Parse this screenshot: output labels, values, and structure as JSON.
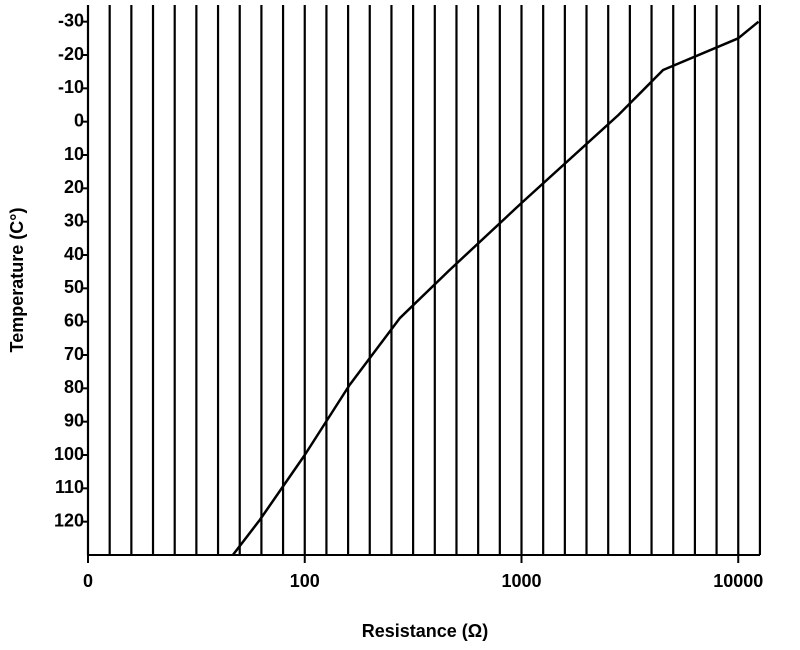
{
  "chart_data": {
    "type": "line",
    "xlabel": "Resistance (Ω)",
    "ylabel": "Temperature (C°)",
    "x": [
      46.6,
      62,
      100,
      161,
      274,
      466,
      1000,
      2800,
      4500,
      10000,
      12400
    ],
    "series": [
      {
        "name": "Temperature",
        "color": "#000000",
        "values": [
          130,
          119.5,
          100,
          79,
          59,
          44.5,
          24.4,
          -2,
          -15.5,
          -25,
          -30
        ]
      }
    ],
    "xscale": "log",
    "xlim": [
      10,
      12600
    ],
    "xticks": [
      {
        "value": 10,
        "label": "0"
      },
      100,
      1000,
      10000
    ],
    "xgrid": [
      10,
      12.59,
      15.85,
      19.95,
      25.12,
      31.62,
      39.81,
      50.12,
      63.1,
      79.43,
      100,
      125.9,
      158.5,
      199.5,
      251.2,
      316.2,
      398.1,
      501.2,
      631,
      794.3,
      1000,
      1259,
      1585,
      1995,
      2512,
      3162,
      3981,
      5012,
      6310,
      7943,
      10000,
      12590
    ],
    "ylim": [
      130,
      -35
    ],
    "yticks": [
      -30,
      -20,
      -10,
      0,
      10,
      20,
      30,
      40,
      50,
      60,
      70,
      80,
      90,
      100,
      110,
      120
    ],
    "grid": true
  }
}
